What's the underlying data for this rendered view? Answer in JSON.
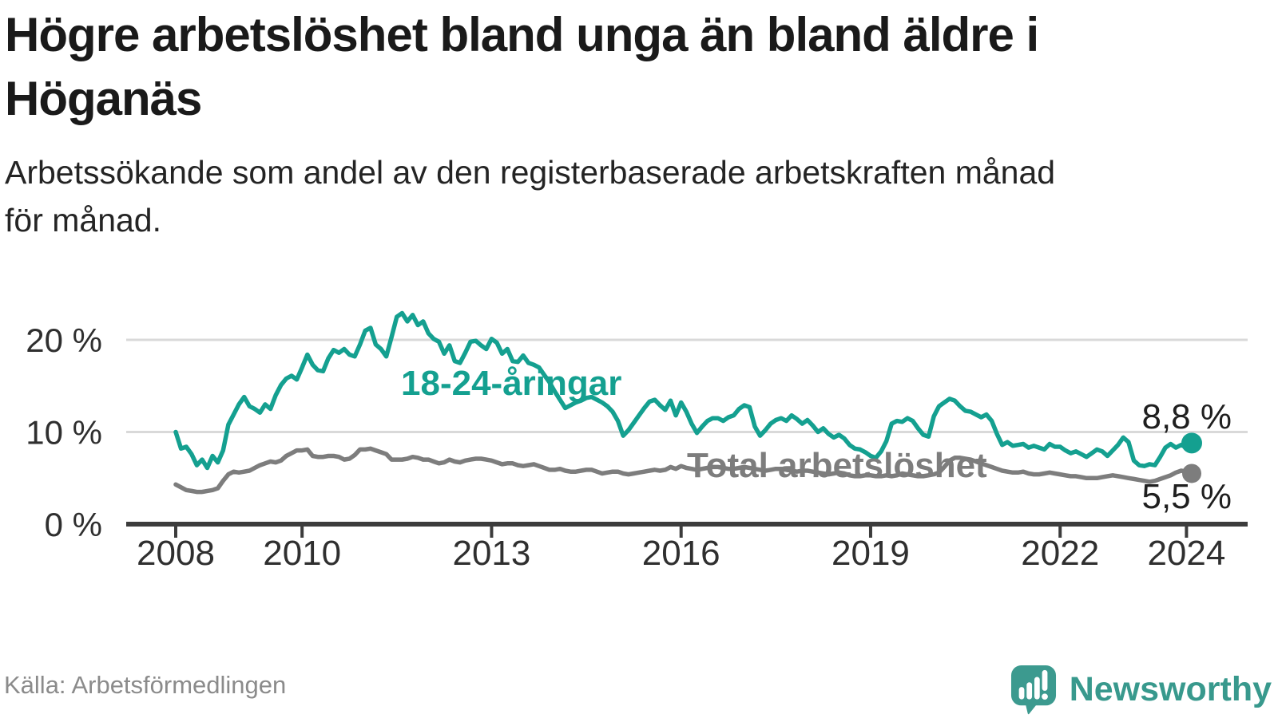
{
  "header": {
    "title_line1": "Högre arbetslöshet bland unga än bland äldre i",
    "title_line2": "Höganäs",
    "subtitle_line1": "Arbetssökande som andel av den registerbaserade arbetskraften månad",
    "subtitle_line2": "för månad."
  },
  "footer": {
    "source": "Källa: Arbetsförmedlingen",
    "brand_name": "Newsworthy",
    "brand_icon": "newsworthy-speech-bubble-bar-chart-icon"
  },
  "colors": {
    "youth_line": "#14a090",
    "total_line": "#7d7d7d",
    "gridline": "#d9d9d9",
    "axis": "#3c3c3c",
    "tick_label": "#2f2f2f",
    "value_label": "#1f1f1f",
    "logo_teal": "#3c9a8f"
  },
  "chart_data": {
    "type": "line",
    "title": "Högre arbetslöshet bland unga än bland äldre i Höganäs",
    "subtitle": "Arbetssökande som andel av den registerbaserade arbetskraften månad för månad.",
    "frequency": "monthly",
    "x_start": "2008-01",
    "x_end": "2024-02",
    "grid": "horizontal",
    "legend": "inline-labels",
    "ylim": [
      0,
      24
    ],
    "y_ticks": [
      {
        "value": 0,
        "label": "0 %"
      },
      {
        "value": 10,
        "label": "10 %"
      },
      {
        "value": 20,
        "label": "20 %"
      }
    ],
    "x_ticks": [
      {
        "year": 2008,
        "label": "2008"
      },
      {
        "year": 2010,
        "label": "2010"
      },
      {
        "year": 2013,
        "label": "2013"
      },
      {
        "year": 2016,
        "label": "2016"
      },
      {
        "year": 2019,
        "label": "2019"
      },
      {
        "year": 2022,
        "label": "2022"
      },
      {
        "year": 2024,
        "label": "2024"
      }
    ],
    "series": [
      {
        "id": "youth",
        "name": "18-24-åringar",
        "color": "#14a090",
        "end_label": "8,8 %",
        "end_value": 8.8,
        "values": [
          10.0,
          8.2,
          8.4,
          7.6,
          6.4,
          7.0,
          6.1,
          7.4,
          6.7,
          8.0,
          10.8,
          11.9,
          13.0,
          13.8,
          12.8,
          12.5,
          12.1,
          13.0,
          12.5,
          14.0,
          15.1,
          15.8,
          16.1,
          15.7,
          17.0,
          18.4,
          17.3,
          16.7,
          16.6,
          18.0,
          18.9,
          18.6,
          19.0,
          18.4,
          18.2,
          19.5,
          21.0,
          21.3,
          19.5,
          19.0,
          18.2,
          20.3,
          22.5,
          22.9,
          22.0,
          22.7,
          21.6,
          22.0,
          20.7,
          20.1,
          19.8,
          18.5,
          19.4,
          17.7,
          17.5,
          18.6,
          19.8,
          19.9,
          19.4,
          19.0,
          20.1,
          19.7,
          18.5,
          19.0,
          17.7,
          17.6,
          18.3,
          17.5,
          17.3,
          17.0,
          16.2,
          15.4,
          14.4,
          13.5,
          12.6,
          12.9,
          13.2,
          13.4,
          13.7,
          13.8,
          13.5,
          13.2,
          12.8,
          12.2,
          11.2,
          9.6,
          10.2,
          11.0,
          11.8,
          12.6,
          13.3,
          13.5,
          12.9,
          12.4,
          13.4,
          11.8,
          13.2,
          12.2,
          10.9,
          9.9,
          10.6,
          11.2,
          11.5,
          11.5,
          11.2,
          11.6,
          11.8,
          12.5,
          12.9,
          12.7,
          10.6,
          9.6,
          10.2,
          10.9,
          11.3,
          11.5,
          11.2,
          11.8,
          11.4,
          10.9,
          11.3,
          10.7,
          10.0,
          10.4,
          9.8,
          9.4,
          9.7,
          9.3,
          8.6,
          8.2,
          8.1,
          7.8,
          7.4,
          7.2,
          7.9,
          9.0,
          10.9,
          11.2,
          11.1,
          11.5,
          11.2,
          10.4,
          9.7,
          9.5,
          11.7,
          12.8,
          13.2,
          13.6,
          13.4,
          12.8,
          12.3,
          12.2,
          11.9,
          11.6,
          11.9,
          11.2,
          9.8,
          8.6,
          8.9,
          8.5,
          8.6,
          8.7,
          8.3,
          8.5,
          8.3,
          8.1,
          8.7,
          8.4,
          8.4,
          8.0,
          7.7,
          7.9,
          7.6,
          7.3,
          7.7,
          8.1,
          7.9,
          7.4,
          8.0,
          8.6,
          9.4,
          8.9,
          6.9,
          6.4,
          6.3,
          6.5,
          6.4,
          7.3,
          8.3,
          8.7,
          8.3,
          8.6,
          8.3,
          8.8
        ]
      },
      {
        "id": "total",
        "name": "Total arbetslöshet",
        "color": "#7d7d7d",
        "end_label": "5,5 %",
        "end_value": 5.5,
        "values": [
          4.3,
          4.0,
          3.7,
          3.6,
          3.5,
          3.5,
          3.6,
          3.7,
          3.9,
          4.7,
          5.4,
          5.7,
          5.6,
          5.7,
          5.8,
          6.1,
          6.4,
          6.6,
          6.8,
          6.7,
          6.9,
          7.4,
          7.7,
          8.0,
          8.0,
          8.1,
          7.4,
          7.3,
          7.3,
          7.4,
          7.4,
          7.3,
          7.0,
          7.1,
          7.5,
          8.1,
          8.1,
          8.2,
          8.0,
          7.8,
          7.6,
          7.0,
          7.0,
          7.0,
          7.1,
          7.3,
          7.2,
          7.0,
          7.0,
          6.8,
          6.6,
          6.7,
          7.0,
          6.8,
          6.7,
          6.9,
          7.0,
          7.1,
          7.1,
          7.0,
          6.9,
          6.7,
          6.5,
          6.6,
          6.6,
          6.4,
          6.3,
          6.4,
          6.5,
          6.3,
          6.1,
          5.9,
          5.9,
          6.0,
          5.8,
          5.7,
          5.7,
          5.8,
          5.9,
          5.9,
          5.7,
          5.5,
          5.6,
          5.7,
          5.7,
          5.5,
          5.4,
          5.5,
          5.6,
          5.7,
          5.8,
          5.9,
          5.8,
          5.9,
          6.2,
          6.0,
          6.3,
          6.1,
          6.0,
          5.9,
          6.0,
          6.1,
          6.2,
          6.2,
          6.1,
          6.0,
          6.0,
          6.1,
          6.2,
          6.1,
          6.0,
          5.9,
          5.8,
          5.9,
          6.0,
          6.0,
          5.9,
          5.8,
          5.7,
          5.8,
          5.8,
          5.7,
          5.6,
          5.5,
          5.4,
          5.5,
          5.6,
          5.5,
          5.3,
          5.2,
          5.2,
          5.3,
          5.3,
          5.2,
          5.2,
          5.3,
          5.2,
          5.3,
          5.5,
          5.4,
          5.3,
          5.2,
          5.2,
          5.3,
          5.4,
          5.6,
          6.2,
          6.9,
          7.2,
          7.2,
          7.1,
          7.0,
          6.8,
          6.6,
          6.4,
          6.2,
          6.0,
          5.8,
          5.7,
          5.6,
          5.6,
          5.7,
          5.5,
          5.4,
          5.4,
          5.5,
          5.6,
          5.5,
          5.4,
          5.3,
          5.2,
          5.2,
          5.1,
          5.0,
          5.0,
          5.0,
          5.1,
          5.2,
          5.3,
          5.2,
          5.1,
          5.0,
          4.9,
          4.8,
          4.7,
          4.6,
          4.7,
          4.9,
          5.1,
          5.3,
          5.6,
          5.8,
          5.7,
          5.5
        ]
      }
    ]
  }
}
